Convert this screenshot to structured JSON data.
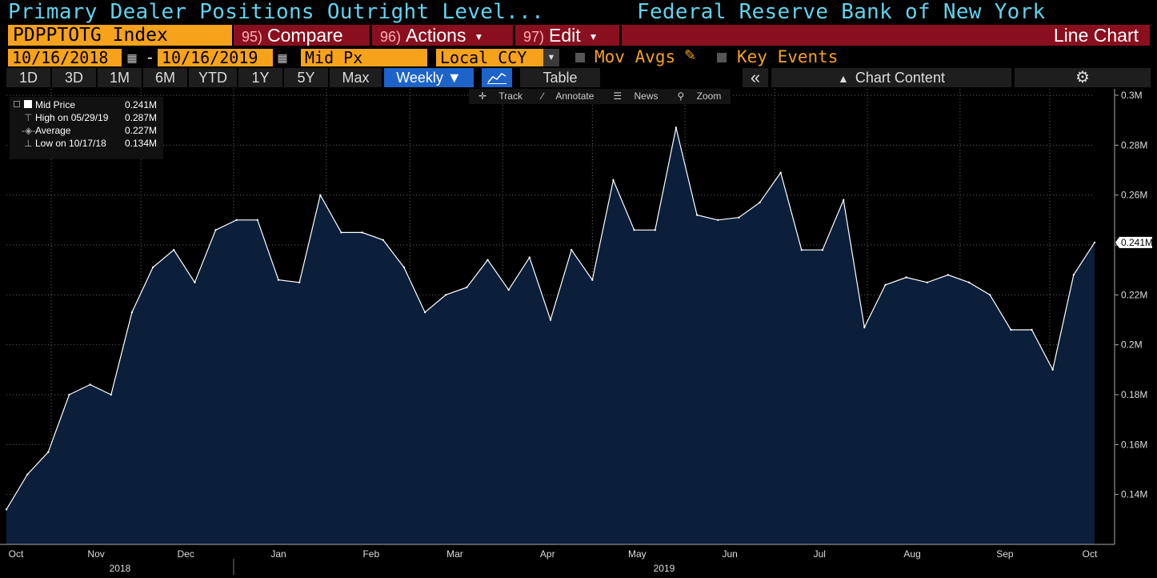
{
  "header": {
    "title": "Primary Dealer Positions Outright Level...",
    "source": "Federal Reserve Bank of New York"
  },
  "toolbar": {
    "ticker": "PDPPTOTG Index",
    "compare_num": "95)",
    "compare_label": "Compare",
    "actions_num": "96)",
    "actions_label": "Actions",
    "edit_num": "97)",
    "edit_label": "Edit",
    "chart_type": "Line Chart"
  },
  "settings": {
    "start_date": "10/16/2018",
    "end_date": "10/16/2019",
    "range_sep": "-",
    "price_field": "Mid Px",
    "currency": "Local CCY",
    "mov_avgs": "Mov Avgs",
    "key_events": "Key Events"
  },
  "periods": [
    "1D",
    "3D",
    "1M",
    "6M",
    "YTD",
    "1Y",
    "5Y",
    "Max"
  ],
  "frequency": "Weekly ▼",
  "table_label": "Table",
  "collapse_label": "«",
  "chart_content_label": "Chart Content",
  "chart_tools": {
    "track": "Track",
    "annotate": "Annotate",
    "news": "News",
    "zoom": "Zoom"
  },
  "legend": {
    "mid_label": "Mid Price",
    "mid_value": "0.241M",
    "high_label": "High on 05/29/19",
    "high_value": "0.287M",
    "avg_label": "Average",
    "avg_value": "0.227M",
    "low_label": "Low on 10/17/18",
    "low_value": "0.134M"
  },
  "chart_data": {
    "type": "area",
    "title": "Primary Dealer Positions Outright Level...",
    "frequency": "Weekly",
    "y_unit": "M",
    "ylim": [
      0.12,
      0.3
    ],
    "y_ticks": [
      0.14,
      0.16,
      0.18,
      0.2,
      0.22,
      0.24,
      0.26,
      0.28,
      0.3
    ],
    "y_tick_labels": [
      "0.14M",
      "0.16M",
      "0.18M",
      "0.2M",
      "0.22M",
      "0.24M",
      "0.26M",
      "0.28M",
      "0.3M"
    ],
    "last_value_label": "0.241M",
    "x_month_labels": [
      "Oct",
      "Nov",
      "Dec",
      "Jan",
      "Feb",
      "Mar",
      "Apr",
      "May",
      "Jun",
      "Jul",
      "Aug",
      "Sep",
      "Oct"
    ],
    "x_year_labels": [
      "2018",
      "2019"
    ],
    "grid": true,
    "fill_color": "#0b1f3b",
    "line_color": "#ffffff",
    "series": [
      {
        "name": "Mid Price",
        "x_start": "2018-10-17",
        "x_end": "2019-10-16",
        "values": [
          0.134,
          0.148,
          0.157,
          0.18,
          0.184,
          0.18,
          0.213,
          0.231,
          0.238,
          0.225,
          0.246,
          0.25,
          0.25,
          0.226,
          0.225,
          0.26,
          0.245,
          0.245,
          0.242,
          0.231,
          0.213,
          0.22,
          0.223,
          0.234,
          0.222,
          0.235,
          0.21,
          0.238,
          0.226,
          0.266,
          0.246,
          0.246,
          0.287,
          0.252,
          0.25,
          0.251,
          0.257,
          0.269,
          0.238,
          0.238,
          0.258,
          0.207,
          0.224,
          0.227,
          0.225,
          0.228,
          0.225,
          0.22,
          0.206,
          0.206,
          0.19,
          0.228,
          0.241
        ]
      }
    ]
  }
}
